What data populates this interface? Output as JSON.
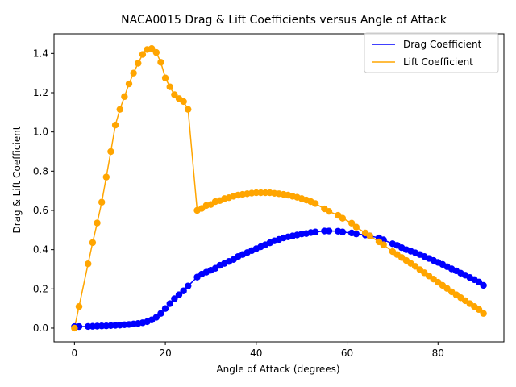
{
  "chart_data": {
    "type": "line",
    "title": "NACA0015 Drag & Lift Coefficients versus Angle of Attack",
    "xlabel": "Angle of Attack (degrees)",
    "ylabel": "Drag & Lift Coefficient",
    "xlim": [
      -4.5,
      94.5
    ],
    "ylim": [
      -0.07,
      1.5
    ],
    "xticks": [
      0,
      20,
      40,
      60,
      80
    ],
    "yticks": [
      0.0,
      0.2,
      0.4,
      0.6,
      0.8,
      1.0,
      1.2,
      1.4
    ],
    "xtick_labels": [
      "0",
      "20",
      "40",
      "60",
      "80"
    ],
    "ytick_labels": [
      "0.0",
      "0.2",
      "0.4",
      "0.6",
      "0.8",
      "1.0",
      "1.2",
      "1.4"
    ],
    "grid": false,
    "legend_position": "top-right",
    "series": [
      {
        "name": "Drag Coefficient",
        "color": "#0000ff",
        "points": [
          [
            0,
            0.0077
          ],
          [
            1,
            0.0078
          ],
          [
            3,
            0.0085
          ],
          [
            4,
            0.0092
          ],
          [
            5,
            0.0102
          ],
          [
            6,
            0.0112
          ],
          [
            7,
            0.0115
          ],
          [
            8,
            0.013
          ],
          [
            9,
            0.0142
          ],
          [
            10,
            0.0152
          ],
          [
            11,
            0.017
          ],
          [
            12,
            0.0188
          ],
          [
            13,
            0.021
          ],
          [
            14,
            0.0238
          ],
          [
            15,
            0.0275
          ],
          [
            16,
            0.033
          ],
          [
            17,
            0.042
          ],
          [
            18,
            0.055
          ],
          [
            19,
            0.075
          ],
          [
            20,
            0.1
          ],
          [
            21,
            0.125
          ],
          [
            22,
            0.15
          ],
          [
            23,
            0.17
          ],
          [
            24,
            0.19
          ],
          [
            25,
            0.215
          ],
          [
            27,
            0.26
          ],
          [
            28,
            0.275
          ],
          [
            29,
            0.285
          ],
          [
            30,
            0.295
          ],
          [
            31,
            0.305
          ],
          [
            32,
            0.32
          ],
          [
            33,
            0.33
          ],
          [
            34,
            0.34
          ],
          [
            35,
            0.35
          ],
          [
            36,
            0.365
          ],
          [
            37,
            0.375
          ],
          [
            38,
            0.385
          ],
          [
            39,
            0.395
          ],
          [
            40,
            0.405
          ],
          [
            41,
            0.415
          ],
          [
            42,
            0.425
          ],
          [
            43,
            0.435
          ],
          [
            44,
            0.445
          ],
          [
            45,
            0.452
          ],
          [
            46,
            0.46
          ],
          [
            47,
            0.465
          ],
          [
            48,
            0.47
          ],
          [
            49,
            0.475
          ],
          [
            50,
            0.48
          ],
          [
            51,
            0.482
          ],
          [
            52,
            0.487
          ],
          [
            53,
            0.49
          ],
          [
            55,
            0.495
          ],
          [
            56,
            0.495
          ],
          [
            58,
            0.494
          ],
          [
            59,
            0.49
          ],
          [
            61,
            0.485
          ],
          [
            62,
            0.48
          ],
          [
            64,
            0.475
          ],
          [
            65,
            0.47
          ],
          [
            67,
            0.46
          ],
          [
            68,
            0.45
          ],
          [
            70,
            0.43
          ],
          [
            71,
            0.422
          ],
          [
            72,
            0.41
          ],
          [
            73,
            0.4
          ],
          [
            74,
            0.392
          ],
          [
            75,
            0.384
          ],
          [
            76,
            0.375
          ],
          [
            77,
            0.365
          ],
          [
            78,
            0.355
          ],
          [
            79,
            0.345
          ],
          [
            80,
            0.335
          ],
          [
            81,
            0.325
          ],
          [
            82,
            0.313
          ],
          [
            83,
            0.302
          ],
          [
            84,
            0.292
          ],
          [
            85,
            0.28
          ],
          [
            86,
            0.27
          ],
          [
            87,
            0.258
          ],
          [
            88,
            0.247
          ],
          [
            89,
            0.235
          ],
          [
            90,
            0.218
          ]
        ]
      },
      {
        "name": "Lift Coefficient",
        "color": "#ffa500",
        "points": [
          [
            0,
            0.0
          ],
          [
            1,
            0.11
          ],
          [
            3,
            0.328
          ],
          [
            4,
            0.436
          ],
          [
            5,
            0.536
          ],
          [
            6,
            0.642
          ],
          [
            7,
            0.77
          ],
          [
            8,
            0.9
          ],
          [
            9,
            1.035
          ],
          [
            10,
            1.115
          ],
          [
            11,
            1.18
          ],
          [
            12,
            1.245
          ],
          [
            13,
            1.3
          ],
          [
            14,
            1.35
          ],
          [
            15,
            1.395
          ],
          [
            16,
            1.42
          ],
          [
            17,
            1.425
          ],
          [
            18,
            1.405
          ],
          [
            19,
            1.355
          ],
          [
            20,
            1.275
          ],
          [
            21,
            1.23
          ],
          [
            22,
            1.19
          ],
          [
            23,
            1.17
          ],
          [
            24,
            1.155
          ],
          [
            25,
            1.115
          ],
          [
            27,
            0.6
          ],
          [
            28,
            0.61
          ],
          [
            29,
            0.625
          ],
          [
            30,
            0.63
          ],
          [
            31,
            0.645
          ],
          [
            32,
            0.65
          ],
          [
            33,
            0.66
          ],
          [
            34,
            0.665
          ],
          [
            35,
            0.672
          ],
          [
            36,
            0.678
          ],
          [
            37,
            0.682
          ],
          [
            38,
            0.685
          ],
          [
            39,
            0.688
          ],
          [
            40,
            0.69
          ],
          [
            41,
            0.69
          ],
          [
            42,
            0.69
          ],
          [
            43,
            0.69
          ],
          [
            44,
            0.687
          ],
          [
            45,
            0.685
          ],
          [
            46,
            0.682
          ],
          [
            47,
            0.678
          ],
          [
            48,
            0.672
          ],
          [
            49,
            0.667
          ],
          [
            50,
            0.66
          ],
          [
            51,
            0.653
          ],
          [
            52,
            0.645
          ],
          [
            53,
            0.635
          ],
          [
            55,
            0.608
          ],
          [
            56,
            0.595
          ],
          [
            58,
            0.575
          ],
          [
            59,
            0.56
          ],
          [
            61,
            0.535
          ],
          [
            62,
            0.515
          ],
          [
            64,
            0.485
          ],
          [
            65,
            0.47
          ],
          [
            67,
            0.44
          ],
          [
            68,
            0.425
          ],
          [
            70,
            0.39
          ],
          [
            71,
            0.375
          ],
          [
            72,
            0.36
          ],
          [
            73,
            0.345
          ],
          [
            74,
            0.33
          ],
          [
            75,
            0.315
          ],
          [
            76,
            0.298
          ],
          [
            77,
            0.282
          ],
          [
            78,
            0.266
          ],
          [
            79,
            0.25
          ],
          [
            80,
            0.234
          ],
          [
            81,
            0.218
          ],
          [
            82,
            0.202
          ],
          [
            83,
            0.185
          ],
          [
            84,
            0.17
          ],
          [
            85,
            0.155
          ],
          [
            86,
            0.14
          ],
          [
            87,
            0.125
          ],
          [
            88,
            0.11
          ],
          [
            89,
            0.095
          ],
          [
            90,
            0.075
          ]
        ]
      }
    ]
  }
}
